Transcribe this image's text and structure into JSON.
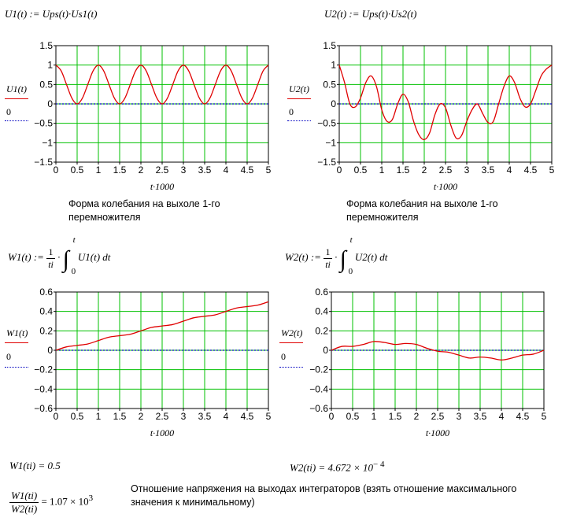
{
  "formulas": {
    "u1_def": "U1(t) := Ups(t)·Us1(t)",
    "u2_def": "U2(t) := Ups(t)·Us2(t)",
    "w1_lhs": "W1(t) :=",
    "w2_lhs": "W2(t) :=",
    "int_num": "1",
    "int_den": "ti",
    "int_upper": "t",
    "int_lower": "0",
    "w1_integrand": "U1(t) dt",
    "w2_integrand": "U2(t) dt",
    "w1_result": "W1(ti) = 0.5",
    "w2_result_base": "W2(ti) = 4.672 × 10",
    "w2_result_exp": "− 4",
    "ratio_num": "W1(ti)",
    "ratio_den": "W2(ti)",
    "ratio_val_base": "= 1.07 × 10",
    "ratio_val_exp": "3"
  },
  "captions": {
    "c1": "Форма колебания на выхоле 1-го перемножителя",
    "c2": "Форма колебания на выхоле 1-го перемножителя",
    "ratio_note": "Отношение напряжения на выходах интеграторов (взять отношение максимального значения к минимальному)"
  },
  "colors": {
    "grid": "#00c000",
    "series": "#e00000",
    "zero": "#0000c0",
    "bg": "#ffffff"
  },
  "chart_data": [
    {
      "type": "line",
      "xlabel": "t·1000",
      "ylabel": "",
      "xlim": [
        0,
        5
      ],
      "ylim": [
        -1.5,
        1.5
      ],
      "xticks": [
        "0",
        "0.5",
        "1",
        "1.5",
        "2",
        "2.5",
        "3",
        "3.5",
        "4",
        "4.5",
        "5"
      ],
      "yticks": [
        "1.5",
        "1",
        "0.5",
        "0",
        "−0.5",
        "−1",
        "−1.5"
      ],
      "series": [
        {
          "name": "U1(t)",
          "x": [
            0,
            0.125,
            0.25,
            0.375,
            0.5,
            0.625,
            0.75,
            0.875,
            1,
            1.125,
            1.25,
            1.375,
            1.5,
            1.625,
            1.75,
            1.875,
            2,
            2.125,
            2.25,
            2.375,
            2.5,
            2.625,
            2.75,
            2.875,
            3,
            3.125,
            3.25,
            3.375,
            3.5,
            3.625,
            3.75,
            3.875,
            4,
            4.125,
            4.25,
            4.375,
            4.5,
            4.625,
            4.75,
            4.875,
            5
          ],
          "values": [
            1,
            0.85,
            0.5,
            0.15,
            0,
            0.15,
            0.5,
            0.85,
            1,
            0.85,
            0.5,
            0.15,
            0,
            0.15,
            0.5,
            0.85,
            1,
            0.85,
            0.5,
            0.15,
            0,
            0.15,
            0.5,
            0.85,
            1,
            0.85,
            0.5,
            0.15,
            0,
            0.15,
            0.5,
            0.85,
            1,
            0.85,
            0.5,
            0.15,
            0,
            0.15,
            0.5,
            0.85,
            1
          ]
        },
        {
          "name": "0",
          "x": [
            0,
            5
          ],
          "values": [
            0,
            0
          ]
        }
      ]
    },
    {
      "type": "line",
      "xlabel": "t·1000",
      "ylabel": "",
      "xlim": [
        0,
        5
      ],
      "ylim": [
        -1.5,
        1.5
      ],
      "xticks": [
        "0",
        "0.5",
        "1",
        "1.5",
        "2",
        "2.5",
        "3",
        "3.5",
        "4",
        "4.5",
        "5"
      ],
      "yticks": [
        "1.5",
        "1",
        "0.5",
        "0",
        "−0.5",
        "−1",
        "−1.5"
      ],
      "series": [
        {
          "name": "U2(t)",
          "x": [
            0,
            0.125,
            0.25,
            0.375,
            0.5,
            0.625,
            0.75,
            0.875,
            1,
            1.125,
            1.25,
            1.375,
            1.5,
            1.625,
            1.75,
            1.875,
            2,
            2.125,
            2.25,
            2.375,
            2.5,
            2.625,
            2.75,
            2.875,
            3,
            3.125,
            3.25,
            3.375,
            3.5,
            3.625,
            3.75,
            3.875,
            4,
            4.125,
            4.25,
            4.375,
            4.5,
            4.625,
            4.75,
            4.875,
            5
          ],
          "values": [
            1,
            0.55,
            0.0,
            -0.08,
            0.15,
            0.55,
            0.72,
            0.45,
            -0.15,
            -0.45,
            -0.4,
            0.0,
            0.25,
            0.05,
            -0.45,
            -0.8,
            -0.92,
            -0.75,
            -0.28,
            0.0,
            -0.1,
            -0.55,
            -0.88,
            -0.82,
            -0.45,
            -0.15,
            0.0,
            -0.25,
            -0.48,
            -0.45,
            0.0,
            0.45,
            0.72,
            0.55,
            0.15,
            -0.08,
            0.0,
            0.35,
            0.72,
            0.9,
            1
          ]
        },
        {
          "name": "0",
          "x": [
            0,
            5
          ],
          "values": [
            0,
            0
          ]
        }
      ]
    },
    {
      "type": "line",
      "xlabel": "t·1000",
      "ylabel": "",
      "xlim": [
        0,
        5
      ],
      "ylim": [
        -0.6,
        0.6
      ],
      "xticks": [
        "0",
        "0.5",
        "1",
        "1.5",
        "2",
        "2.5",
        "3",
        "3.5",
        "4",
        "4.5",
        "5"
      ],
      "yticks": [
        "0.6",
        "0.4",
        "0.2",
        "0",
        "−0.2",
        "−0.4",
        "−0.6"
      ],
      "series": [
        {
          "name": "W1(t)",
          "x": [
            0,
            0.25,
            0.5,
            0.75,
            1,
            1.25,
            1.5,
            1.75,
            2,
            2.25,
            2.5,
            2.75,
            3,
            3.25,
            3.5,
            3.75,
            4,
            4.25,
            4.5,
            4.75,
            5
          ],
          "values": [
            0,
            0.035,
            0.05,
            0.065,
            0.1,
            0.135,
            0.15,
            0.165,
            0.2,
            0.235,
            0.25,
            0.265,
            0.3,
            0.335,
            0.35,
            0.365,
            0.4,
            0.435,
            0.45,
            0.465,
            0.5
          ]
        },
        {
          "name": "0",
          "x": [
            0,
            5
          ],
          "values": [
            0,
            0
          ]
        }
      ]
    },
    {
      "type": "line",
      "xlabel": "t·1000",
      "ylabel": "",
      "xlim": [
        0,
        5
      ],
      "ylim": [
        -0.6,
        0.6
      ],
      "xticks": [
        "0",
        "0.5",
        "1",
        "1.5",
        "2",
        "2.5",
        "3",
        "3.5",
        "4",
        "4.5",
        "5"
      ],
      "yticks": [
        "0.6",
        "0.4",
        "0.2",
        "0",
        "−0.2",
        "−0.4",
        "−0.6"
      ],
      "series": [
        {
          "name": "W2(t)",
          "x": [
            0,
            0.25,
            0.5,
            0.75,
            1,
            1.25,
            1.5,
            1.75,
            2,
            2.25,
            2.5,
            2.75,
            3,
            3.25,
            3.5,
            3.75,
            4,
            4.25,
            4.5,
            4.75,
            5
          ],
          "values": [
            0,
            0.04,
            0.04,
            0.06,
            0.09,
            0.08,
            0.06,
            0.07,
            0.06,
            0.02,
            -0.01,
            -0.02,
            -0.05,
            -0.08,
            -0.07,
            -0.08,
            -0.1,
            -0.08,
            -0.05,
            -0.04,
            0
          ]
        },
        {
          "name": "0",
          "x": [
            0,
            5
          ],
          "values": [
            0,
            0
          ]
        }
      ]
    }
  ]
}
